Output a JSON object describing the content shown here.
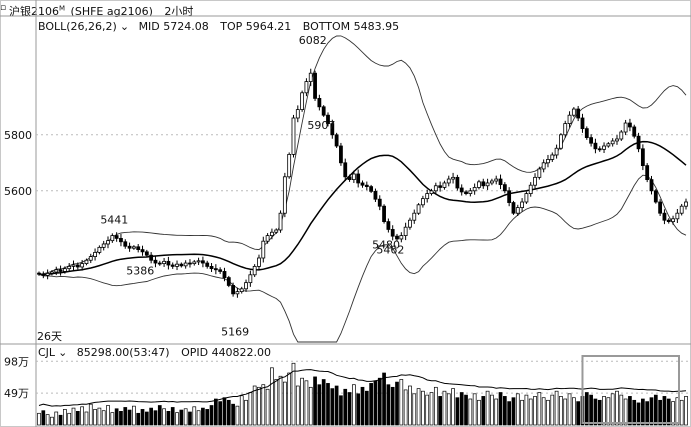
{
  "window": {
    "title": "沪银2106",
    "title_superscript": "M",
    "code": "(SHFE ag2106)",
    "period": "2小时"
  },
  "indicator_main": {
    "name": "BOLL(26,26,2)",
    "mid_text": "MID 5724.08",
    "top_text": "TOP 5964.21",
    "bottom_text": "BOTTOM 5483.95"
  },
  "indicator_sub": {
    "name": "CJL",
    "value_text": "85298.00(53:47)",
    "opid_text": "OPID 440822.00"
  },
  "chart_data": [
    {
      "type": "candlestick",
      "ylim": [
        5060,
        6160
      ],
      "yticks": [
        5600,
        5800
      ],
      "annotations": [
        {
          "label": "5462",
          "value": 5462
        },
        {
          "label": "5169",
          "value": 5169
        },
        {
          "label": "6082",
          "value": 6082
        },
        {
          "label": "5386",
          "value": 5386
        },
        {
          "label": "5480",
          "value": 5480
        },
        {
          "label": "5907",
          "value": 5907
        },
        {
          "label": "5441",
          "value": 5441
        }
      ],
      "x_marker": "26天",
      "close": [
        5302,
        5298,
        5305,
        5310,
        5318,
        5312,
        5322,
        5330,
        5335,
        5328,
        5340,
        5352,
        5365,
        5380,
        5398,
        5410,
        5422,
        5440,
        5430,
        5418,
        5402,
        5395,
        5400,
        5390,
        5382,
        5370,
        5352,
        5342,
        5340,
        5348,
        5335,
        5330,
        5338,
        5332,
        5342,
        5340,
        5346,
        5350,
        5342,
        5330,
        5322,
        5318,
        5312,
        5290,
        5262,
        5232,
        5240,
        5250,
        5272,
        5300,
        5330,
        5360,
        5420,
        5440,
        5452,
        5460,
        5520,
        5650,
        5730,
        5860,
        5890,
        5950,
        5990,
        6020,
        5930,
        5900,
        5870,
        5840,
        5800,
        5760,
        5700,
        5650,
        5640,
        5660,
        5628,
        5620,
        5615,
        5598,
        5570,
        5545,
        5490,
        5462,
        5438,
        5428,
        5440,
        5470,
        5495,
        5520,
        5550,
        5572,
        5590,
        5600,
        5618,
        5612,
        5628,
        5642,
        5648,
        5610,
        5596,
        5590,
        5600,
        5612,
        5632,
        5618,
        5628,
        5635,
        5642,
        5622,
        5600,
        5558,
        5520,
        5540,
        5560,
        5590,
        5620,
        5648,
        5678,
        5700,
        5712,
        5728,
        5752,
        5800,
        5840,
        5870,
        5892,
        5860,
        5822,
        5790,
        5770,
        5750,
        5748,
        5760,
        5768,
        5778,
        5785,
        5810,
        5842,
        5828,
        5795,
        5750,
        5690,
        5640,
        5600,
        5560,
        5520,
        5495,
        5490,
        5500,
        5520,
        5545,
        5560
      ],
      "volume": [
        18,
        22,
        16,
        12,
        20,
        15,
        24,
        18,
        26,
        21,
        28,
        20,
        32,
        24,
        26,
        22,
        30,
        19,
        25,
        21,
        27,
        23,
        29,
        18,
        24,
        20,
        26,
        22,
        30,
        25,
        21,
        27,
        19,
        23,
        25,
        20,
        28,
        22,
        26,
        24,
        30,
        40,
        36,
        42,
        38,
        32,
        29,
        45,
        38,
        50,
        60,
        58,
        62,
        55,
        88,
        70,
        75,
        66,
        80,
        95,
        60,
        72,
        68,
        58,
        74,
        62,
        70,
        64,
        56,
        60,
        45,
        55,
        50,
        62,
        48,
        58,
        52,
        64,
        68,
        72,
        80,
        62,
        58,
        66,
        70,
        54,
        60,
        48,
        56,
        52,
        46,
        50,
        58,
        44,
        52,
        48,
        56,
        42,
        50,
        46,
        40,
        48,
        38,
        44,
        52,
        46,
        40,
        50,
        44,
        36,
        42,
        48,
        38,
        46,
        40,
        44,
        50,
        42,
        38,
        46,
        52,
        44,
        40,
        48,
        42,
        36,
        44,
        50,
        46,
        40,
        38,
        44,
        42,
        48,
        52,
        46,
        40,
        44,
        38,
        34,
        40,
        36,
        42,
        46,
        38,
        44,
        40,
        36,
        42,
        38,
        44
      ]
    }
  ]
}
